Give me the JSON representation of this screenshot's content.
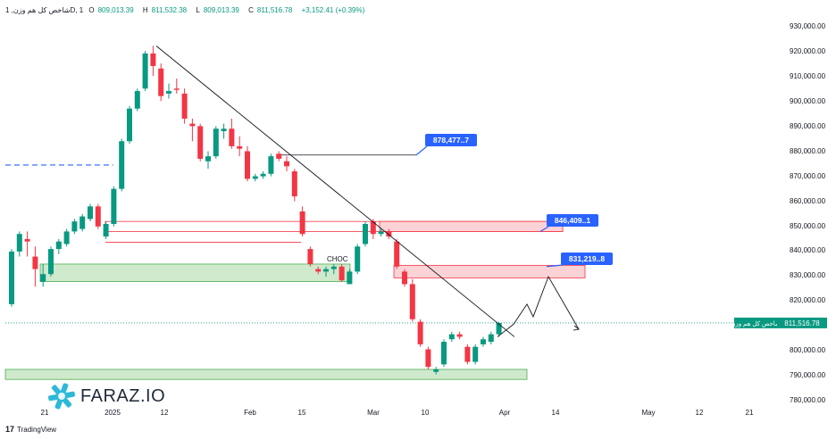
{
  "header": {
    "symbol": "شاخص کل هم وزن, 1D, 1",
    "open_label": "O",
    "open": "809,013.39",
    "high_label": "H",
    "high": "811,532.38",
    "low_label": "L",
    "low": "809,013.39",
    "close_label": "C",
    "close": "811,516.78",
    "change": "+3,152.41 (+0.39%)"
  },
  "price_tag": {
    "name": "شاخص کل هم وزن",
    "value": "811,516.78"
  },
  "callouts": [
    {
      "label": "878,477..7"
    },
    {
      "label": "846,409..1"
    },
    {
      "label": "831,219..8"
    }
  ],
  "choch_label": "CHOC",
  "logo_text": "FARAZ.IO",
  "tradingview_label": "TradingView",
  "colors": {
    "up": "#089981",
    "down": "#f23645",
    "callout": "#2962ff",
    "demand_fill": "#cfe9cc",
    "demand_stroke": "#4caf50",
    "supply_fill": "#fbd3d6",
    "supply_stroke": "#f23645"
  },
  "chart_data": {
    "type": "candlestick",
    "y_axis": {
      "ticks": [
        "930,000.00",
        "920,000.00",
        "910,000.00",
        "900,000.00",
        "890,000.00",
        "880,000.00",
        "870,000.00",
        "860,000.00",
        "850,000.00",
        "840,000.00",
        "830,000.00",
        "820,000.00",
        "810,000.00",
        "800,000.00",
        "790,000.00",
        "780,000.00"
      ],
      "range": [
        775000,
        933000
      ]
    },
    "x_axis": {
      "ticks": [
        "21",
        "2025",
        "12",
        "Feb",
        "15",
        "Mar",
        "10",
        "Apr",
        "14",
        "May",
        "12",
        "21"
      ]
    },
    "candles": [
      {
        "o": 819000,
        "h": 841000,
        "l": 818000,
        "c": 840000
      },
      {
        "o": 840000,
        "h": 848000,
        "l": 838000,
        "c": 847000
      },
      {
        "o": 845000,
        "h": 848000,
        "l": 838000,
        "c": 844000
      },
      {
        "o": 838000,
        "h": 842000,
        "l": 826000,
        "c": 833000
      },
      {
        "o": 828000,
        "h": 835000,
        "l": 826000,
        "c": 831000
      },
      {
        "o": 831000,
        "h": 842000,
        "l": 830000,
        "c": 841000
      },
      {
        "o": 841000,
        "h": 845000,
        "l": 839000,
        "c": 844000
      },
      {
        "o": 843000,
        "h": 849000,
        "l": 842000,
        "c": 848000
      },
      {
        "o": 848000,
        "h": 853000,
        "l": 847000,
        "c": 852000
      },
      {
        "o": 849000,
        "h": 855000,
        "l": 848000,
        "c": 854000
      },
      {
        "o": 853000,
        "h": 859000,
        "l": 852000,
        "c": 858000
      },
      {
        "o": 858000,
        "h": 859000,
        "l": 849000,
        "c": 850000
      },
      {
        "o": 846000,
        "h": 852000,
        "l": 845000,
        "c": 851000
      },
      {
        "o": 851000,
        "h": 866000,
        "l": 850000,
        "c": 865000
      },
      {
        "o": 865000,
        "h": 885000,
        "l": 864000,
        "c": 884000
      },
      {
        "o": 884000,
        "h": 898000,
        "l": 883000,
        "c": 897000
      },
      {
        "o": 897000,
        "h": 905000,
        "l": 896000,
        "c": 904000
      },
      {
        "o": 905000,
        "h": 920000,
        "l": 904000,
        "c": 919000
      },
      {
        "o": 919000,
        "h": 922000,
        "l": 910000,
        "c": 914000
      },
      {
        "o": 913000,
        "h": 915000,
        "l": 900000,
        "c": 902000
      },
      {
        "o": 903000,
        "h": 907000,
        "l": 901000,
        "c": 904000
      },
      {
        "o": 905000,
        "h": 909000,
        "l": 903000,
        "c": 904500
      },
      {
        "o": 903000,
        "h": 905000,
        "l": 891000,
        "c": 893000
      },
      {
        "o": 891000,
        "h": 893000,
        "l": 884000,
        "c": 890000
      },
      {
        "o": 890000,
        "h": 891000,
        "l": 876000,
        "c": 877000
      },
      {
        "o": 876000,
        "h": 880000,
        "l": 873000,
        "c": 878000
      },
      {
        "o": 878000,
        "h": 890000,
        "l": 877000,
        "c": 889000
      },
      {
        "o": 888000,
        "h": 891000,
        "l": 885000,
        "c": 889000
      },
      {
        "o": 889000,
        "h": 893000,
        "l": 881000,
        "c": 882000
      },
      {
        "o": 882000,
        "h": 886000,
        "l": 878000,
        "c": 881000
      },
      {
        "o": 880000,
        "h": 882000,
        "l": 868000,
        "c": 869000
      },
      {
        "o": 869000,
        "h": 871000,
        "l": 868000,
        "c": 870000
      },
      {
        "o": 870000,
        "h": 872000,
        "l": 869000,
        "c": 871000
      },
      {
        "o": 871000,
        "h": 879000,
        "l": 870000,
        "c": 878000
      },
      {
        "o": 879000,
        "h": 880000,
        "l": 876000,
        "c": 877000
      },
      {
        "o": 876000,
        "h": 878000,
        "l": 872000,
        "c": 874000
      },
      {
        "o": 872000,
        "h": 873000,
        "l": 860000,
        "c": 862000
      },
      {
        "o": 856000,
        "h": 858000,
        "l": 846000,
        "c": 847000
      },
      {
        "o": 841000,
        "h": 842000,
        "l": 834000,
        "c": 835000
      },
      {
        "o": 833000,
        "h": 834000,
        "l": 831000,
        "c": 832000
      },
      {
        "o": 832000,
        "h": 834000,
        "l": 830000,
        "c": 833000
      },
      {
        "o": 833000,
        "h": 835000,
        "l": 831000,
        "c": 834000
      },
      {
        "o": 834000,
        "h": 835000,
        "l": 828000,
        "c": 828500
      },
      {
        "o": 827000,
        "h": 833000,
        "l": 827000,
        "c": 832000
      },
      {
        "o": 832000,
        "h": 843000,
        "l": 831000,
        "c": 842000
      },
      {
        "o": 843000,
        "h": 852000,
        "l": 842000,
        "c": 851000
      },
      {
        "o": 852000,
        "h": 853000,
        "l": 845000,
        "c": 847000
      },
      {
        "o": 847000,
        "h": 849000,
        "l": 846000,
        "c": 848000
      },
      {
        "o": 848000,
        "h": 849000,
        "l": 845000,
        "c": 846000
      },
      {
        "o": 844000,
        "h": 845000,
        "l": 833000,
        "c": 834000
      },
      {
        "o": 832000,
        "h": 833000,
        "l": 826000,
        "c": 827000
      },
      {
        "o": 827000,
        "h": 829000,
        "l": 812000,
        "c": 813000
      },
      {
        "o": 812000,
        "h": 813000,
        "l": 802000,
        "c": 803000
      },
      {
        "o": 801000,
        "h": 802000,
        "l": 793000,
        "c": 794000
      },
      {
        "o": 792000,
        "h": 794000,
        "l": 791000,
        "c": 793000
      },
      {
        "o": 795000,
        "h": 805000,
        "l": 794000,
        "c": 804000
      },
      {
        "o": 805000,
        "h": 808000,
        "l": 804000,
        "c": 807000
      },
      {
        "o": 807000,
        "h": 808000,
        "l": 805000,
        "c": 806000
      },
      {
        "o": 802000,
        "h": 803000,
        "l": 795000,
        "c": 796000
      },
      {
        "o": 796000,
        "h": 803000,
        "l": 795000,
        "c": 802000
      },
      {
        "o": 803000,
        "h": 806000,
        "l": 802000,
        "c": 805000
      },
      {
        "o": 804000,
        "h": 808000,
        "l": 803000,
        "c": 807000
      },
      {
        "o": 807000,
        "h": 812000,
        "l": 806000,
        "c": 811500
      }
    ],
    "zones": [
      {
        "kind": "demand",
        "top": 835000,
        "bottom": 828000
      },
      {
        "kind": "demand",
        "top": 793000,
        "bottom": 789000
      },
      {
        "kind": "supply",
        "top": 852000,
        "bottom": 848000
      },
      {
        "kind": "supply",
        "top": 834500,
        "bottom": 829500
      }
    ],
    "levels": [
      {
        "label": "878,477..7",
        "value": 878478
      },
      {
        "label": "846,409..1",
        "value": 846409
      },
      {
        "label": "831,219..8",
        "value": 831220
      }
    ],
    "trendline": [
      922000,
      806000
    ],
    "projection": [
      806000,
      811000,
      819000,
      814000,
      830000,
      809000
    ],
    "last_price": 811516.78,
    "blue_dashed_level": 874500
  }
}
